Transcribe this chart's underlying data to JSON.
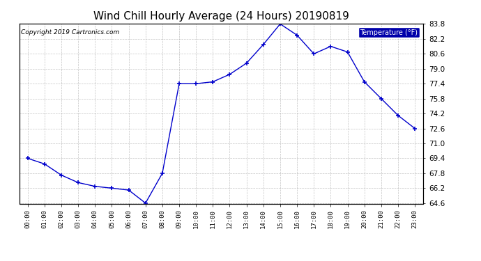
{
  "title": "Wind Chill Hourly Average (24 Hours) 20190819",
  "copyright": "Copyright 2019 Cartronics.com",
  "legend_label": "Temperature (°F)",
  "x_labels": [
    "00:00",
    "01:00",
    "02:00",
    "03:00",
    "04:00",
    "05:00",
    "06:00",
    "07:00",
    "08:00",
    "09:00",
    "10:00",
    "11:00",
    "12:00",
    "13:00",
    "14:00",
    "15:00",
    "16:00",
    "17:00",
    "18:00",
    "19:00",
    "20:00",
    "21:00",
    "22:00",
    "23:00"
  ],
  "y_values": [
    69.4,
    68.8,
    67.6,
    66.8,
    66.4,
    66.2,
    66.0,
    64.6,
    67.8,
    77.4,
    77.4,
    77.6,
    78.4,
    79.6,
    81.6,
    83.8,
    82.6,
    80.6,
    81.4,
    80.8,
    77.6,
    75.8,
    74.0,
    72.6
  ],
  "line_color": "#0000cc",
  "marker_color": "#0000cc",
  "background_color": "#ffffff",
  "plot_bg_color": "#ffffff",
  "grid_color": "#aaaaaa",
  "y_min": 64.6,
  "y_max": 83.8,
  "y_ticks": [
    64.6,
    66.2,
    67.8,
    69.4,
    71.0,
    72.6,
    74.2,
    75.8,
    77.4,
    79.0,
    80.6,
    82.2,
    83.8
  ],
  "title_fontsize": 11,
  "legend_bg_color": "#0000aa",
  "legend_text_color": "#ffffff"
}
